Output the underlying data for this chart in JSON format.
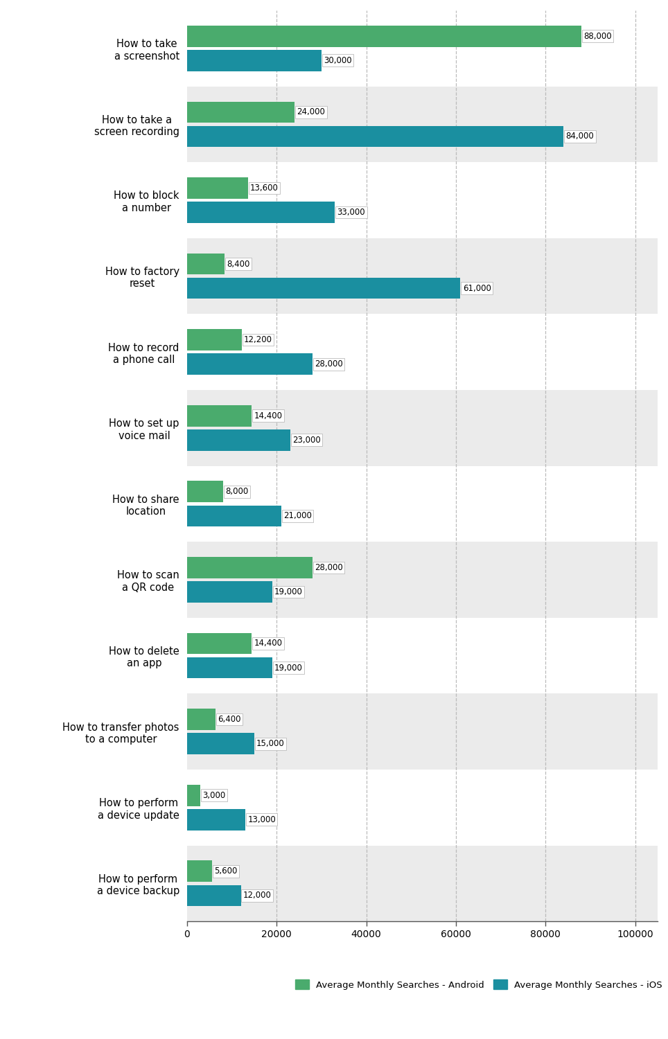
{
  "categories": [
    "How to take\na screenshot",
    "How to take a\nscreen recording",
    "How to block\na number",
    "How to factory\nreset",
    "How to record\na phone call",
    "How to set up\nvoice mail",
    "How to share\nlocation",
    "How to scan\na QR code",
    "How to delete\nan app",
    "How to transfer photos\nto a computer",
    "How to perform\na device update",
    "How to perform\na device backup"
  ],
  "android_values": [
    88000,
    24000,
    13600,
    8400,
    12200,
    14400,
    8000,
    28000,
    14400,
    6400,
    3000,
    5600
  ],
  "ios_values": [
    30000,
    84000,
    33000,
    61000,
    28000,
    23000,
    21000,
    19000,
    19000,
    15000,
    13000,
    12000
  ],
  "android_color": "#4aab6d",
  "ios_color": "#1a8fa0",
  "bar_height": 0.28,
  "xlim": [
    0,
    105000
  ],
  "xticks": [
    0,
    20000,
    40000,
    60000,
    80000,
    100000
  ],
  "xtick_labels": [
    "0",
    "20000",
    "40000",
    "60000",
    "80000",
    "100000"
  ],
  "grid_color": "#bbbbbb",
  "bg_color_gray": "#ebebeb",
  "bg_color_white": "#ffffff",
  "label_fontsize": 10.5,
  "tick_fontsize": 10,
  "legend_android": "Average Monthly Searches - Android",
  "legend_ios": "Average Monthly Searches - iOS",
  "value_fontsize": 8.5
}
